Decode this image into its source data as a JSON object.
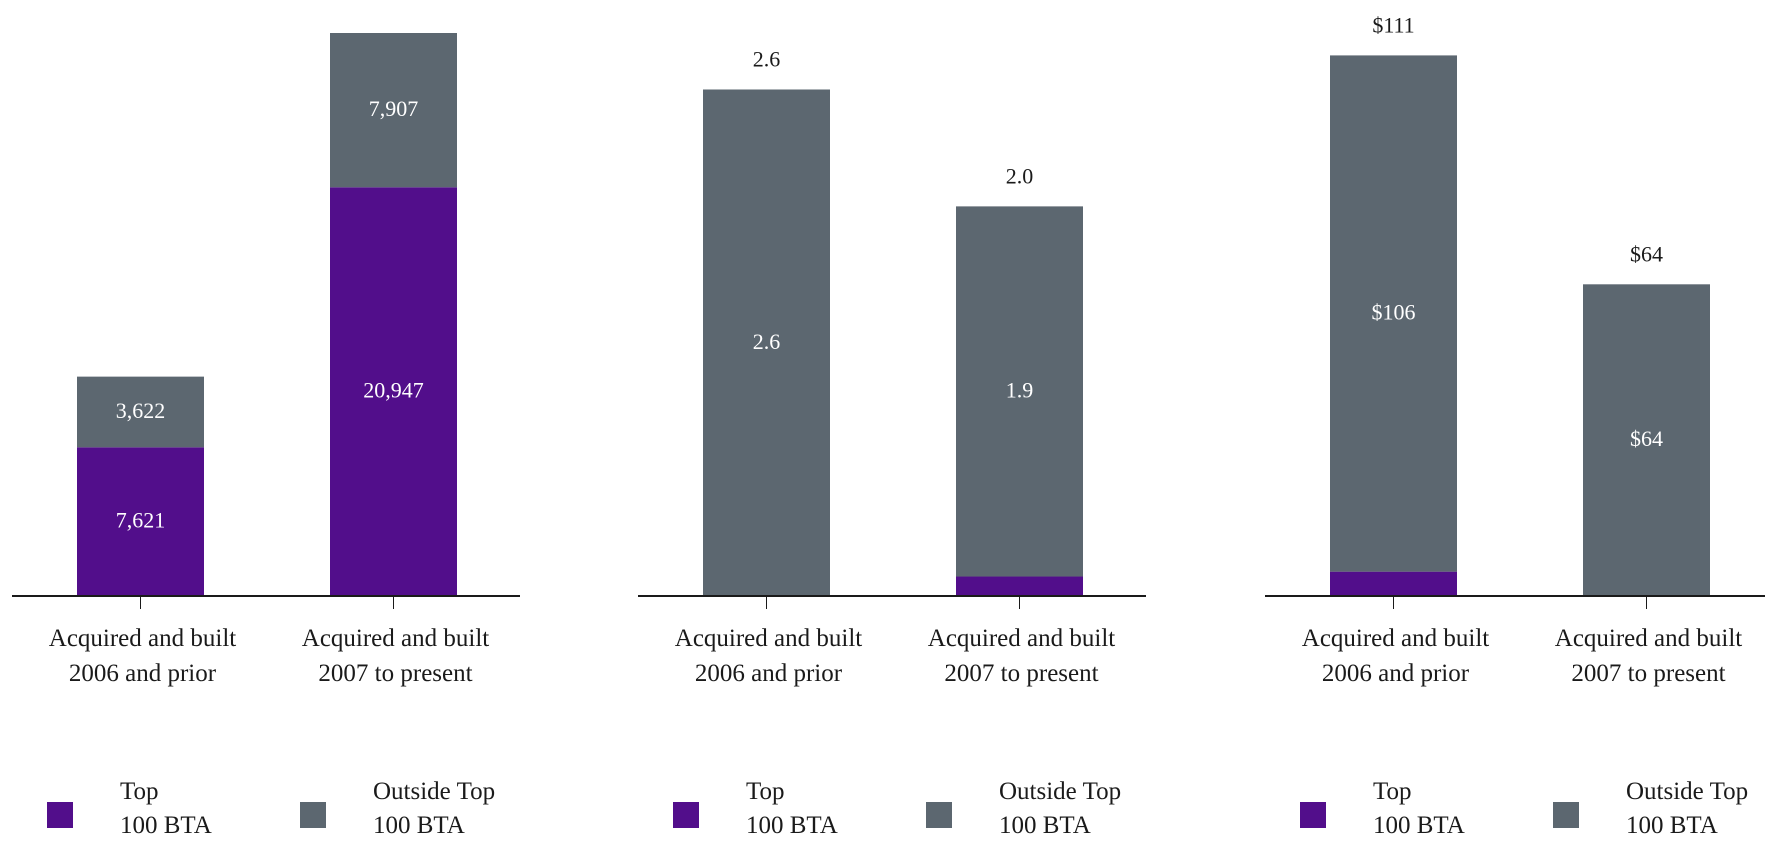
{
  "colors": {
    "top": "#520E8B",
    "outside": "#5C6770",
    "axis": "#1A1A1A"
  },
  "legend": {
    "top_line1": "Top",
    "top_line2": "100 BTA",
    "outside_line1": "Outside Top",
    "outside_line2": "100 BTA"
  },
  "chart_data": [
    {
      "type": "bar",
      "stacked": true,
      "categories": [
        [
          "Acquired and built",
          "2006 and prior"
        ],
        [
          "Acquired and built",
          "2007 to present"
        ]
      ],
      "series": [
        {
          "name": "Top 100 BTA",
          "color_key": "top",
          "values": [
            7621,
            20947
          ],
          "labels": [
            "7,621",
            "20,947"
          ]
        },
        {
          "name": "Outside Top 100 BTA",
          "color_key": "outside",
          "values": [
            3622,
            7907
          ],
          "labels": [
            "3,622",
            "7,907"
          ]
        }
      ],
      "totals": [
        "",
        ""
      ],
      "ylim": [
        0,
        28854
      ]
    },
    {
      "type": "bar",
      "stacked": true,
      "categories": [
        [
          "Acquired and built",
          "2006 and prior"
        ],
        [
          "Acquired and built",
          "2007 to present"
        ]
      ],
      "series": [
        {
          "name": "Top 100 BTA",
          "color_key": "top",
          "values": [
            0,
            0.1
          ],
          "labels": [
            "",
            ""
          ]
        },
        {
          "name": "Outside Top 100 BTA",
          "color_key": "outside",
          "values": [
            2.6,
            1.9
          ],
          "labels": [
            "2.6",
            "1.9"
          ]
        }
      ],
      "totals": [
        "2.6",
        "2.0"
      ],
      "ylim": [
        0,
        2.89
      ]
    },
    {
      "type": "bar",
      "stacked": true,
      "categories": [
        [
          "Acquired and built",
          "2006 and prior"
        ],
        [
          "Acquired and built",
          "2007 to present"
        ]
      ],
      "series": [
        {
          "name": "Top 100 BTA",
          "color_key": "top",
          "values": [
            5,
            0
          ],
          "labels": [
            "",
            ""
          ]
        },
        {
          "name": "Outside Top 100 BTA",
          "color_key": "outside",
          "values": [
            106,
            64
          ],
          "labels": [
            "$106",
            "$64"
          ]
        }
      ],
      "totals": [
        "$111",
        "$64"
      ],
      "ylim": [
        0,
        115.6
      ]
    }
  ]
}
